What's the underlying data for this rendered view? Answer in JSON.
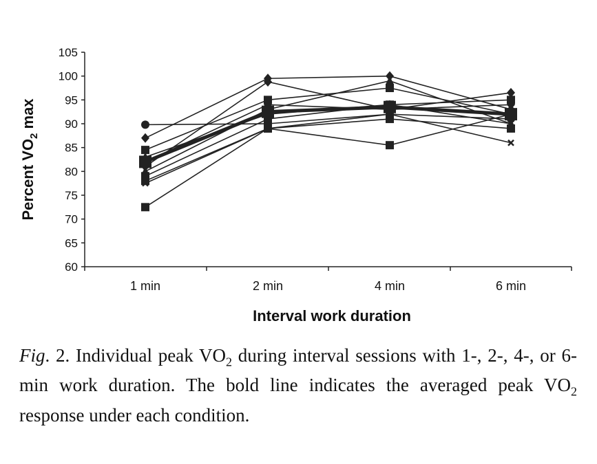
{
  "chart_data": {
    "type": "line",
    "xlabel": "Interval work duration",
    "ylabel_parts": {
      "pre": "Percent VO",
      "sub": "2",
      "post": " max"
    },
    "categories": [
      "1 min",
      "2 min",
      "4 min",
      "6 min"
    ],
    "ylim": [
      60,
      105
    ],
    "yticks": [
      60,
      65,
      70,
      75,
      80,
      85,
      90,
      95,
      100,
      105
    ],
    "grid": false,
    "legend": "none",
    "series": [
      {
        "values": [
          89.8,
          90,
          92,
          91
        ],
        "marker": "circle"
      },
      {
        "values": [
          87,
          99.5,
          100,
          93
        ],
        "marker": "diamond"
      },
      {
        "values": [
          84.5,
          95,
          97.5,
          92
        ],
        "marker": "square"
      },
      {
        "values": [
          81,
          98.8,
          93,
          96.5
        ],
        "marker": "diamond"
      },
      {
        "values": [
          80,
          93,
          99,
          90
        ],
        "marker": "triangle"
      },
      {
        "values": [
          79,
          91,
          94,
          95
        ],
        "marker": "square"
      },
      {
        "values": [
          78,
          89,
          85.5,
          92
        ],
        "marker": "square"
      },
      {
        "values": [
          77.5,
          89,
          92,
          86
        ],
        "marker": "cross"
      },
      {
        "values": [
          72.5,
          89,
          91,
          89
        ],
        "marker": "square"
      },
      {
        "values": [
          82,
          94,
          93,
          94
        ],
        "marker": "diamond"
      },
      {
        "values": [
          83,
          92,
          94,
          90
        ],
        "marker": "triangle"
      },
      {
        "values": [
          82,
          92.5,
          93.5,
          92
        ],
        "marker": "square",
        "bold": true
      }
    ],
    "color": "#222222"
  },
  "caption": {
    "fig": "Fig",
    "num": ". 2.",
    "t1": " Individual peak VO",
    "sub1": "2",
    "t2": " during interval sessions with 1-, 2-, 4-, or 6-min work duration. The bold line indicates the averaged peak VO",
    "sub2": "2",
    "t3": " response under each condition."
  }
}
